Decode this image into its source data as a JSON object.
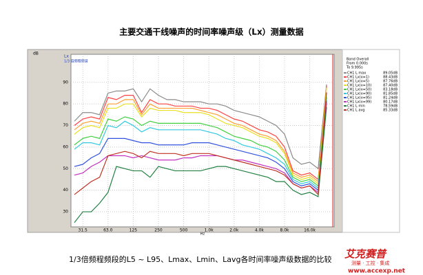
{
  "title": "主要交通干线噪声的时间率噪声级（Lx）测量数据",
  "caption": "1/3倍频程频段的L5 ~ L95、Lmax、Lmin、Lavg各时间率噪声级数据的比较",
  "logo": {
    "name": "艾克赛普",
    "slogan": "测量 · 工控 · 集成",
    "url": "www.accexp.net"
  },
  "chart_data": {
    "type": "line",
    "title": "Lx",
    "subtitle": "1/3 倍频程频谱",
    "y_label": "dB",
    "x_label": "Hz",
    "legend_header": [
      "Band Overall",
      "From 0.000s",
      "To  9.995s"
    ],
    "categories": [
      null,
      "31.5",
      null,
      null,
      "63.0",
      null,
      null,
      "125",
      null,
      null,
      "250",
      null,
      null,
      "500",
      null,
      null,
      "1.0k",
      null,
      null,
      "2.0k",
      null,
      null,
      "4.0k",
      null,
      null,
      "8.0k",
      null,
      null,
      "16.0k",
      null,
      null
    ],
    "ylim": [
      23,
      103
    ],
    "yticks": [
      30,
      40,
      50,
      60,
      70,
      80,
      90
    ],
    "grid": true,
    "series": [
      {
        "name": "CH1  L max",
        "legend_value": "89.05dB",
        "color": "#8a8a8a",
        "values": [
          72,
          76,
          76,
          75,
          85,
          86,
          86,
          87,
          81,
          87,
          84,
          82,
          82,
          81,
          81,
          81,
          80,
          80,
          79,
          77,
          76,
          75,
          74,
          72,
          70,
          66,
          55,
          52,
          53,
          50,
          89.05
        ]
      },
      {
        "name": "CH1  Lx(x=1)",
        "legend_value": "88.43dB",
        "color": "#ff4040",
        "values": [
          70,
          73,
          74,
          73,
          83,
          82,
          84,
          84,
          76,
          82,
          80,
          80,
          79,
          79,
          79,
          78,
          78,
          77,
          75,
          73,
          72,
          70,
          68,
          67,
          65,
          60,
          49,
          47,
          48,
          45,
          88.43
        ]
      },
      {
        "name": "CH1  Lx(x=5)",
        "legend_value": "87.76dB",
        "color": "#ff9f30",
        "values": [
          68,
          71,
          72,
          71,
          80,
          80,
          82,
          82,
          75,
          80,
          78,
          78,
          78,
          78,
          78,
          77,
          76,
          75,
          73,
          71,
          70,
          68,
          66,
          65,
          63,
          58,
          48,
          46,
          47,
          44,
          87.76
        ]
      },
      {
        "name": "CH1  Lx(x=10)",
        "legend_value": "87.40dB",
        "color": "#e8e020",
        "values": [
          66,
          69,
          70,
          69,
          78,
          78,
          80,
          80,
          74,
          78,
          77,
          77,
          77,
          76,
          76,
          76,
          75,
          73,
          71,
          70,
          69,
          67,
          65,
          64,
          62,
          57,
          47,
          45,
          46,
          43,
          87.4
        ]
      },
      {
        "name": "CH1  Lx(x=50)",
        "legend_value": "83.18dB",
        "color": "#40d040",
        "values": [
          61,
          64,
          65,
          64,
          73,
          72,
          74,
          73,
          70,
          72,
          71,
          71,
          71,
          71,
          71,
          71,
          70,
          69,
          67,
          65,
          64,
          63,
          61,
          60,
          58,
          54,
          46,
          44,
          45,
          42,
          83.18
        ]
      },
      {
        "name": "CH1  Lx(x=90)",
        "legend_value": "81.85dB",
        "color": "#30c8e0",
        "values": [
          59,
          62,
          62,
          61,
          70,
          69,
          72,
          70,
          67,
          69,
          68,
          68,
          68,
          68,
          68,
          68,
          67,
          66,
          64,
          63,
          61,
          60,
          59,
          57,
          55,
          52,
          45,
          43,
          44,
          41,
          81.85
        ]
      },
      {
        "name": "CH1  Lx(x=95)",
        "legend_value": "81.24dB",
        "color": "#3050e0",
        "values": [
          51,
          52,
          55,
          57,
          64,
          64,
          64,
          63,
          62,
          62,
          61,
          61,
          61,
          61,
          62,
          62,
          62,
          61,
          60,
          59,
          58,
          57,
          56,
          55,
          53,
          50,
          44,
          42,
          43,
          40,
          81.24
        ]
      },
      {
        "name": "CH1  Lx(x=99)",
        "legend_value": "80.17dB",
        "color": "#c030c0",
        "values": [
          47,
          48,
          51,
          53,
          56,
          56,
          56,
          55,
          56,
          55,
          54,
          54,
          54,
          55,
          55,
          56,
          56,
          56,
          55,
          54,
          54,
          53,
          52,
          51,
          50,
          48,
          43,
          41,
          42,
          39,
          80.17
        ]
      },
      {
        "name": "CH1  L min",
        "legend_value": "78.59dB",
        "color": "#208040",
        "values": [
          25,
          30,
          30,
          34,
          39,
          51,
          50,
          49,
          49,
          46,
          51,
          50,
          49,
          49,
          49,
          49,
          50,
          51,
          51,
          50,
          49,
          48,
          47,
          46,
          44,
          44,
          40,
          38,
          39,
          37,
          78.59
        ]
      },
      {
        "name": "CH1  L avg",
        "legend_value": "85.33dB",
        "color": "#c03020",
        "values": [
          38,
          41,
          44,
          46,
          56,
          57,
          58,
          57,
          55,
          58,
          57,
          57,
          57,
          56,
          57,
          57,
          57,
          56,
          55,
          54,
          53,
          52,
          51,
          50,
          49,
          47,
          43,
          41,
          42,
          38,
          85.33
        ]
      }
    ]
  }
}
